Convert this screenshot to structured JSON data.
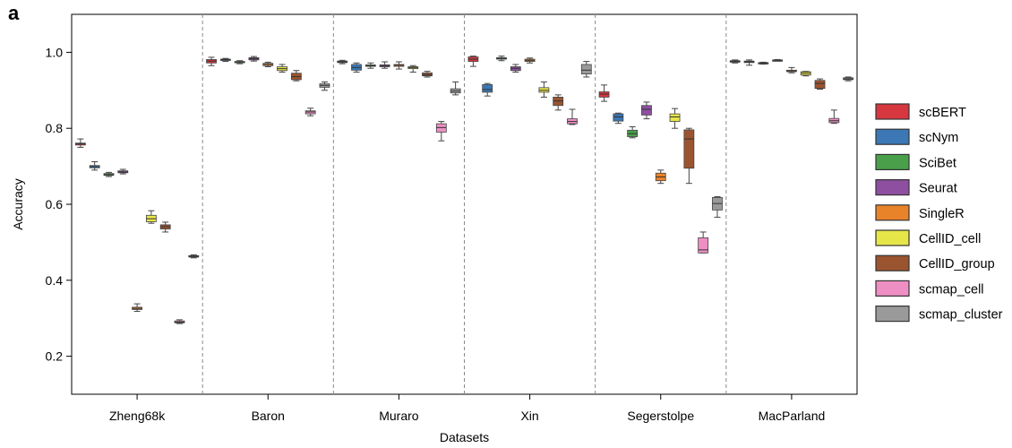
{
  "panel_label": "a",
  "chart_data": {
    "type": "boxplot",
    "xlabel": "Datasets",
    "ylabel": "Accuracy",
    "ylim": [
      0.1,
      1.1
    ],
    "yticks": [
      0.2,
      0.4,
      0.6,
      0.8,
      1.0
    ],
    "ytick_labels": [
      "0.2",
      "0.4",
      "0.6",
      "0.8",
      "1.0"
    ],
    "grid": false,
    "legend_position": "right",
    "categories": [
      "Zheng68k",
      "Baron",
      "Muraro",
      "Xin",
      "Segerstolpe",
      "MacParland"
    ],
    "series": [
      {
        "name": "scBERT",
        "color": "#d7373f",
        "boxes": [
          {
            "dataset": "Zheng68k",
            "q1": 0.756,
            "median": 0.759,
            "q3": 0.761,
            "min": 0.75,
            "max": 0.772
          },
          {
            "dataset": "Baron",
            "q1": 0.972,
            "median": 0.977,
            "q3": 0.981,
            "min": 0.965,
            "max": 0.987
          },
          {
            "dataset": "Muraro",
            "q1": 0.973,
            "median": 0.975,
            "q3": 0.977,
            "min": 0.97,
            "max": 0.979
          },
          {
            "dataset": "Xin",
            "q1": 0.976,
            "median": 0.982,
            "q3": 0.988,
            "min": 0.963,
            "max": 0.99
          },
          {
            "dataset": "Segerstolpe",
            "q1": 0.882,
            "median": 0.89,
            "q3": 0.896,
            "min": 0.871,
            "max": 0.914
          },
          {
            "dataset": "MacParland",
            "q1": 0.974,
            "median": 0.976,
            "q3": 0.978,
            "min": 0.972,
            "max": 0.98
          }
        ]
      },
      {
        "name": "scNym",
        "color": "#3b78b5",
        "boxes": [
          {
            "dataset": "Zheng68k",
            "q1": 0.696,
            "median": 0.699,
            "q3": 0.702,
            "min": 0.69,
            "max": 0.712
          },
          {
            "dataset": "Baron",
            "q1": 0.979,
            "median": 0.981,
            "q3": 0.982,
            "min": 0.976,
            "max": 0.984
          },
          {
            "dataset": "Muraro",
            "q1": 0.953,
            "median": 0.96,
            "q3": 0.968,
            "min": 0.948,
            "max": 0.972
          },
          {
            "dataset": "Xin",
            "q1": 0.895,
            "median": 0.902,
            "q3": 0.915,
            "min": 0.885,
            "max": 0.918
          },
          {
            "dataset": "Segerstolpe",
            "q1": 0.819,
            "median": 0.83,
            "q3": 0.838,
            "min": 0.813,
            "max": 0.84
          },
          {
            "dataset": "MacParland",
            "q1": 0.973,
            "median": 0.975,
            "q3": 0.977,
            "min": 0.966,
            "max": 0.98
          }
        ]
      },
      {
        "name": "SciBet",
        "color": "#4aa04a",
        "boxes": [
          {
            "dataset": "Zheng68k",
            "q1": 0.676,
            "median": 0.678,
            "q3": 0.681,
            "min": 0.673,
            "max": 0.684
          },
          {
            "dataset": "Baron",
            "q1": 0.973,
            "median": 0.975,
            "q3": 0.976,
            "min": 0.97,
            "max": 0.978
          },
          {
            "dataset": "Muraro",
            "q1": 0.963,
            "median": 0.965,
            "q3": 0.967,
            "min": 0.958,
            "max": 0.972
          },
          {
            "dataset": "Xin",
            "q1": 0.982,
            "median": 0.984,
            "q3": 0.986,
            "min": 0.978,
            "max": 0.99
          },
          {
            "dataset": "Segerstolpe",
            "q1": 0.778,
            "median": 0.786,
            "q3": 0.795,
            "min": 0.775,
            "max": 0.804
          },
          {
            "dataset": "MacParland",
            "q1": 0.97,
            "median": 0.971,
            "q3": 0.973,
            "min": 0.969,
            "max": 0.974
          }
        ]
      },
      {
        "name": "Seurat",
        "color": "#8e4fa0",
        "boxes": [
          {
            "dataset": "Zheng68k",
            "q1": 0.683,
            "median": 0.685,
            "q3": 0.688,
            "min": 0.68,
            "max": 0.692
          },
          {
            "dataset": "Baron",
            "q1": 0.98,
            "median": 0.983,
            "q3": 0.986,
            "min": 0.977,
            "max": 0.989
          },
          {
            "dataset": "Muraro",
            "q1": 0.962,
            "median": 0.965,
            "q3": 0.967,
            "min": 0.958,
            "max": 0.975
          },
          {
            "dataset": "Xin",
            "q1": 0.952,
            "median": 0.958,
            "q3": 0.962,
            "min": 0.948,
            "max": 0.968
          },
          {
            "dataset": "Segerstolpe",
            "q1": 0.835,
            "median": 0.85,
            "q3": 0.86,
            "min": 0.825,
            "max": 0.869
          },
          {
            "dataset": "MacParland",
            "q1": 0.978,
            "median": 0.979,
            "q3": 0.98,
            "min": 0.977,
            "max": 0.981
          }
        ]
      },
      {
        "name": "SingleR",
        "color": "#e8832a",
        "boxes": [
          {
            "dataset": "Zheng68k",
            "q1": 0.323,
            "median": 0.326,
            "q3": 0.329,
            "min": 0.318,
            "max": 0.338
          },
          {
            "dataset": "Baron",
            "q1": 0.965,
            "median": 0.968,
            "q3": 0.971,
            "min": 0.962,
            "max": 0.974
          },
          {
            "dataset": "Muraro",
            "q1": 0.963,
            "median": 0.966,
            "q3": 0.968,
            "min": 0.956,
            "max": 0.975
          },
          {
            "dataset": "Xin",
            "q1": 0.976,
            "median": 0.979,
            "q3": 0.982,
            "min": 0.972,
            "max": 0.985
          },
          {
            "dataset": "Segerstolpe",
            "q1": 0.662,
            "median": 0.672,
            "q3": 0.682,
            "min": 0.655,
            "max": 0.69
          },
          {
            "dataset": "MacParland",
            "q1": 0.949,
            "median": 0.951,
            "q3": 0.953,
            "min": 0.946,
            "max": 0.96
          }
        ]
      },
      {
        "name": "CellID_cell",
        "color": "#e7e648",
        "boxes": [
          {
            "dataset": "Zheng68k",
            "q1": 0.554,
            "median": 0.562,
            "q3": 0.571,
            "min": 0.55,
            "max": 0.583
          },
          {
            "dataset": "Baron",
            "q1": 0.952,
            "median": 0.957,
            "q3": 0.962,
            "min": 0.948,
            "max": 0.968
          },
          {
            "dataset": "Muraro",
            "q1": 0.957,
            "median": 0.96,
            "q3": 0.962,
            "min": 0.948,
            "max": 0.965
          },
          {
            "dataset": "Xin",
            "q1": 0.895,
            "median": 0.9,
            "q3": 0.907,
            "min": 0.882,
            "max": 0.922
          },
          {
            "dataset": "Segerstolpe",
            "q1": 0.818,
            "median": 0.83,
            "q3": 0.838,
            "min": 0.8,
            "max": 0.852
          },
          {
            "dataset": "MacParland",
            "q1": 0.94,
            "median": 0.945,
            "q3": 0.949,
            "min": 0.938,
            "max": 0.95
          }
        ]
      },
      {
        "name": "CellID_group",
        "color": "#9b5430",
        "boxes": [
          {
            "dataset": "Zheng68k",
            "q1": 0.535,
            "median": 0.541,
            "q3": 0.546,
            "min": 0.527,
            "max": 0.553
          },
          {
            "dataset": "Baron",
            "q1": 0.928,
            "median": 0.936,
            "q3": 0.945,
            "min": 0.925,
            "max": 0.952
          },
          {
            "dataset": "Muraro",
            "q1": 0.938,
            "median": 0.941,
            "q3": 0.946,
            "min": 0.935,
            "max": 0.95
          },
          {
            "dataset": "Xin",
            "q1": 0.86,
            "median": 0.872,
            "q3": 0.882,
            "min": 0.848,
            "max": 0.888
          },
          {
            "dataset": "Segerstolpe",
            "q1": 0.695,
            "median": 0.772,
            "q3": 0.796,
            "min": 0.655,
            "max": 0.8
          },
          {
            "dataset": "MacParland",
            "q1": 0.905,
            "median": 0.918,
            "q3": 0.926,
            "min": 0.903,
            "max": 0.93
          }
        ]
      },
      {
        "name": "scmap_cell",
        "color": "#ee8fc3",
        "boxes": [
          {
            "dataset": "Zheng68k",
            "q1": 0.288,
            "median": 0.29,
            "q3": 0.293,
            "min": 0.286,
            "max": 0.296
          },
          {
            "dataset": "Baron",
            "q1": 0.838,
            "median": 0.843,
            "q3": 0.846,
            "min": 0.833,
            "max": 0.853
          },
          {
            "dataset": "Muraro",
            "q1": 0.79,
            "median": 0.802,
            "q3": 0.812,
            "min": 0.767,
            "max": 0.818
          },
          {
            "dataset": "Xin",
            "q1": 0.812,
            "median": 0.818,
            "q3": 0.825,
            "min": 0.81,
            "max": 0.85
          },
          {
            "dataset": "Segerstolpe",
            "q1": 0.472,
            "median": 0.48,
            "q3": 0.512,
            "min": 0.472,
            "max": 0.527
          },
          {
            "dataset": "MacParland",
            "q1": 0.815,
            "median": 0.82,
            "q3": 0.826,
            "min": 0.813,
            "max": 0.848
          }
        ]
      },
      {
        "name": "scmap_cluster",
        "color": "#9a9a9a",
        "boxes": [
          {
            "dataset": "Zheng68k",
            "q1": 0.461,
            "median": 0.463,
            "q3": 0.465,
            "min": 0.459,
            "max": 0.467
          },
          {
            "dataset": "Baron",
            "q1": 0.908,
            "median": 0.913,
            "q3": 0.917,
            "min": 0.9,
            "max": 0.922
          },
          {
            "dataset": "Muraro",
            "q1": 0.893,
            "median": 0.898,
            "q3": 0.904,
            "min": 0.888,
            "max": 0.922
          },
          {
            "dataset": "Xin",
            "q1": 0.943,
            "median": 0.953,
            "q3": 0.968,
            "min": 0.935,
            "max": 0.976
          },
          {
            "dataset": "Segerstolpe",
            "q1": 0.585,
            "median": 0.602,
            "q3": 0.618,
            "min": 0.566,
            "max": 0.62
          },
          {
            "dataset": "MacParland",
            "q1": 0.928,
            "median": 0.93,
            "q3": 0.933,
            "min": 0.925,
            "max": 0.935
          }
        ]
      }
    ]
  }
}
